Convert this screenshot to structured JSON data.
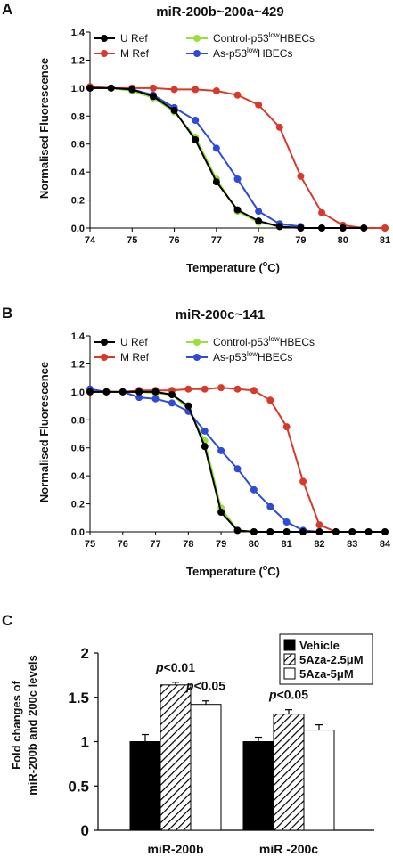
{
  "chart_data": [
    {
      "panel": "A",
      "type": "line",
      "title": "miR-200b~200a~429",
      "xlabel": "Temperature (",
      "xlabel_sup": "o",
      "xlabel_end": "C)",
      "ylabel": "Normalised Fluorescence",
      "xlim": [
        74,
        81
      ],
      "ylim": [
        0,
        1.4
      ],
      "xticks": [
        "74",
        "75",
        "76",
        "77",
        "78",
        "79",
        "80",
        "81"
      ],
      "yticks": [
        "0.0",
        "0.2",
        "0.4",
        "0.6",
        "0.8",
        "1.0",
        "1.2",
        "1.4"
      ],
      "legend": "top",
      "series": [
        {
          "name": "U Ref",
          "color": "#000000",
          "x": [
            74,
            74.5,
            75,
            75.5,
            76,
            76.5,
            77,
            77.5,
            78,
            78.5,
            79,
            79.5,
            80,
            80.5
          ],
          "y": [
            1.0,
            1.0,
            0.99,
            0.94,
            0.84,
            0.63,
            0.33,
            0.13,
            0.05,
            0.01,
            0.0,
            0.0,
            0.0,
            0.0
          ]
        },
        {
          "name": "M Ref",
          "color": "#d63a2a",
          "x": [
            74,
            74.5,
            75,
            75.5,
            76,
            76.5,
            77,
            77.5,
            78,
            78.5,
            79,
            79.5,
            80,
            80.5,
            81
          ],
          "y": [
            1.01,
            1.0,
            1.0,
            1.0,
            0.99,
            0.99,
            0.98,
            0.95,
            0.88,
            0.72,
            0.37,
            0.11,
            0.02,
            0.0,
            0.0
          ]
        },
        {
          "name": "Control-p53",
          "name_sup": "low",
          "name_end": "HBECs",
          "color": "#9be03a",
          "x": [
            74,
            74.5,
            75,
            75.5,
            76,
            76.5,
            77,
            77.5,
            78,
            78.5
          ],
          "y": [
            1.0,
            1.0,
            0.98,
            0.93,
            0.83,
            0.65,
            0.35,
            0.12,
            0.04,
            0.01
          ]
        },
        {
          "name": "As-p53",
          "name_sup": "low",
          "name_end": "HBECs",
          "color": "#2d4bd6",
          "x": [
            74,
            74.5,
            75,
            75.5,
            76,
            76.5,
            77,
            77.5,
            78,
            78.5,
            79
          ],
          "y": [
            1.0,
            1.0,
            0.99,
            0.95,
            0.86,
            0.77,
            0.57,
            0.35,
            0.12,
            0.03,
            0.01
          ]
        }
      ]
    },
    {
      "panel": "B",
      "type": "line",
      "title": "miR-200c~141",
      "xlabel": "Temperature (",
      "xlabel_sup": "o",
      "xlabel_end": "C)",
      "ylabel": "Normalised Fluorescence",
      "xlim": [
        75,
        84
      ],
      "ylim": [
        0,
        1.4
      ],
      "xticks": [
        "75",
        "76",
        "77",
        "78",
        "79",
        "80",
        "81",
        "82",
        "83",
        "84"
      ],
      "yticks": [
        "0.0",
        "0.2",
        "0.4",
        "0.6",
        "0.8",
        "1.0",
        "1.2",
        "1.4"
      ],
      "legend": "top",
      "series": [
        {
          "name": "U Ref",
          "color": "#000000",
          "x": [
            75,
            75.5,
            76,
            76.5,
            77,
            77.5,
            78,
            78.5,
            79,
            79.5,
            80,
            80.5,
            81,
            81.5,
            82,
            82.5,
            83,
            83.5,
            84
          ],
          "y": [
            1.0,
            1.0,
            1.0,
            1.0,
            1.0,
            0.98,
            0.9,
            0.61,
            0.14,
            0.01,
            0.0,
            0.0,
            0.0,
            0.0,
            0.0,
            0.0,
            0.0,
            0.0,
            0.0
          ]
        },
        {
          "name": "M Ref",
          "color": "#d63a2a",
          "x": [
            75,
            75.5,
            76,
            76.5,
            77,
            77.5,
            78,
            78.5,
            79,
            79.5,
            80,
            80.5,
            81,
            81.5,
            82,
            82.5
          ],
          "y": [
            1.0,
            1.0,
            1.0,
            1.01,
            1.01,
            1.01,
            1.02,
            1.02,
            1.03,
            1.02,
            1.01,
            0.94,
            0.75,
            0.36,
            0.05,
            0.0
          ]
        },
        {
          "name": "Control-p53",
          "name_sup": "low",
          "name_end": "HBECs",
          "color": "#9be03a",
          "x": [
            75,
            75.5,
            76,
            76.5,
            77,
            77.5,
            78,
            78.5,
            79,
            79.5,
            80,
            80.5
          ],
          "y": [
            1.0,
            1.0,
            1.0,
            1.0,
            0.99,
            0.98,
            0.88,
            0.65,
            0.17,
            0.01,
            0.0,
            0.0
          ]
        },
        {
          "name": "As-p53",
          "name_sup": "low",
          "name_end": "HBECs",
          "color": "#2d4bd6",
          "x": [
            75,
            75.5,
            76,
            76.5,
            77,
            77.5,
            78,
            78.5,
            79,
            79.5,
            80,
            80.5,
            81,
            81.5,
            82
          ],
          "y": [
            1.02,
            1.0,
            1.0,
            0.96,
            0.95,
            0.92,
            0.86,
            0.72,
            0.58,
            0.45,
            0.3,
            0.18,
            0.07,
            0.01,
            0.0
          ]
        }
      ]
    },
    {
      "panel": "C",
      "type": "bar",
      "ylabel_line1": "Fold changes of",
      "ylabel_line2": "miR-200b and 200c levels",
      "ylim": [
        0,
        2
      ],
      "yticks": [
        "0",
        "0.5",
        "1",
        "1.5",
        "2"
      ],
      "categories": [
        "miR-200b",
        "miR -200c"
      ],
      "legend": "top-right",
      "series": [
        {
          "name": "Vehicle",
          "fill": "solid-black",
          "values": [
            1.0,
            1.0
          ],
          "errors": [
            0.08,
            0.05
          ]
        },
        {
          "name": "5Aza-2.5μM",
          "fill": "hatched",
          "values": [
            1.64,
            1.31
          ],
          "errors": [
            0.03,
            0.05
          ]
        },
        {
          "name": "5Aza-5μM",
          "fill": "white",
          "values": [
            1.42,
            1.13
          ],
          "errors": [
            0.04,
            0.06
          ]
        }
      ],
      "annotations": [
        {
          "p": "p",
          "text": "<0.01",
          "category": 0,
          "series": 1
        },
        {
          "p": "p",
          "text": "<0.05",
          "category": 0,
          "series": 2
        },
        {
          "p": "p",
          "text": "<0.05",
          "category": 1,
          "series": 1
        }
      ]
    }
  ],
  "panel_labels": [
    "A",
    "B",
    "C"
  ]
}
